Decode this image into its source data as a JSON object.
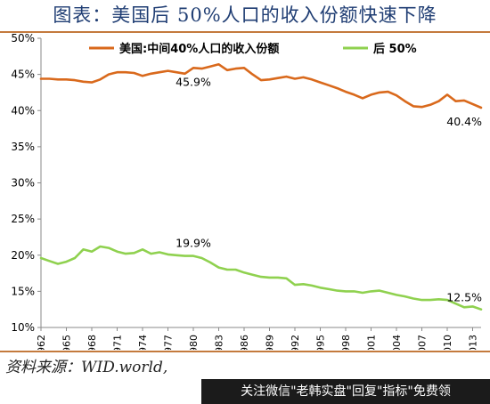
{
  "header": {
    "title": "图表：美国后 50%人口的收入份额快速下降"
  },
  "footer": {
    "source": "资料来源：WID.world,",
    "banner": "关注微信\"老韩实盘\"回复\"指标\"免费领"
  },
  "colors": {
    "series_middle": "#d9691c",
    "series_bottom": "#8fd14f",
    "rule": "#c47a3d"
  },
  "chart_data": {
    "type": "line",
    "title": "图表：美国后 50%人口的收入份额快速下降",
    "xlabel": "",
    "ylabel": "",
    "ylim": [
      10,
      50
    ],
    "yticks": [
      "10%",
      "15%",
      "20%",
      "25%",
      "30%",
      "35%",
      "40%",
      "45%",
      "50%"
    ],
    "yticks_values": [
      10,
      15,
      20,
      25,
      30,
      35,
      40,
      45,
      50
    ],
    "xlim": [
      1962,
      2014
    ],
    "xticks": [
      "1962",
      "1965",
      "1968",
      "1971",
      "1974",
      "1977",
      "1980",
      "1983",
      "1986",
      "1989",
      "1992",
      "1995",
      "1998",
      "2001",
      "2004",
      "2007",
      "2010",
      "2013"
    ],
    "legend_position": "top",
    "grid": false,
    "x": [
      1962,
      1963,
      1964,
      1965,
      1966,
      1967,
      1968,
      1969,
      1970,
      1971,
      1972,
      1973,
      1974,
      1975,
      1976,
      1977,
      1978,
      1979,
      1980,
      1981,
      1982,
      1983,
      1984,
      1985,
      1986,
      1987,
      1988,
      1989,
      1990,
      1991,
      1992,
      1993,
      1994,
      1995,
      1996,
      1997,
      1998,
      1999,
      2000,
      2001,
      2002,
      2003,
      2004,
      2005,
      2006,
      2007,
      2008,
      2009,
      2010,
      2011,
      2012,
      2013,
      2014
    ],
    "series": [
      {
        "name": "美国:中间40%人口的收入份额",
        "values": [
          44.4,
          44.4,
          44.3,
          44.3,
          44.2,
          44.0,
          43.9,
          44.3,
          45.0,
          45.3,
          45.3,
          45.2,
          44.8,
          45.1,
          45.3,
          45.5,
          45.3,
          45.1,
          45.9,
          45.8,
          46.1,
          46.4,
          45.6,
          45.8,
          45.9,
          45.0,
          44.2,
          44.3,
          44.5,
          44.7,
          44.4,
          44.6,
          44.3,
          43.9,
          43.5,
          43.1,
          42.6,
          42.2,
          41.7,
          42.2,
          42.5,
          42.6,
          42.1,
          41.3,
          40.6,
          40.5,
          40.8,
          41.3,
          42.2,
          41.3,
          41.4,
          40.9,
          40.4
        ],
        "annotations": [
          {
            "x": 1980,
            "text": "45.9%"
          },
          {
            "x": 2014,
            "text": "40.4%"
          }
        ]
      },
      {
        "name": "后 50%",
        "values": [
          19.6,
          19.2,
          18.8,
          19.1,
          19.6,
          20.8,
          20.5,
          21.2,
          21.0,
          20.5,
          20.2,
          20.3,
          20.8,
          20.2,
          20.4,
          20.1,
          20.0,
          19.9,
          19.9,
          19.6,
          19.0,
          18.3,
          18.0,
          18.0,
          17.6,
          17.3,
          17.0,
          16.9,
          16.9,
          16.8,
          15.9,
          16.0,
          15.8,
          15.5,
          15.3,
          15.1,
          15.0,
          15.0,
          14.8,
          15.0,
          15.1,
          14.8,
          14.5,
          14.3,
          14.0,
          13.8,
          13.8,
          13.9,
          13.8,
          13.3,
          12.8,
          12.9,
          12.5
        ],
        "annotations": [
          {
            "x": 1980,
            "text": "19.9%"
          },
          {
            "x": 2014,
            "text": "12.5%"
          }
        ]
      }
    ]
  }
}
